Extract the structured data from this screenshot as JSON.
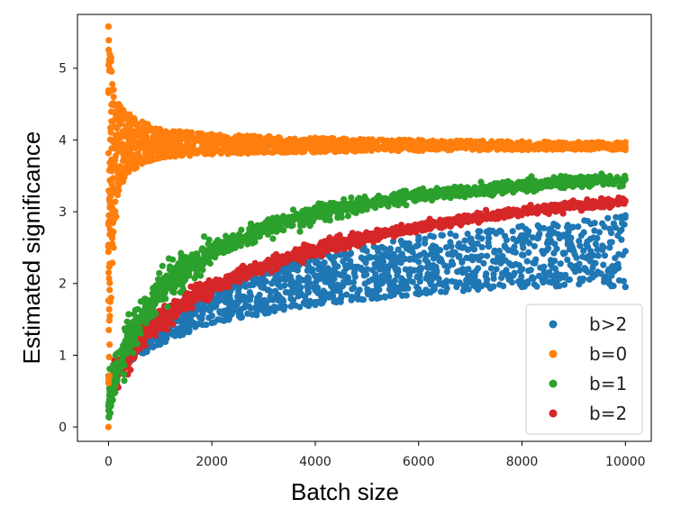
{
  "chart_data": {
    "type": "scatter",
    "xlabel": "Batch size",
    "ylabel": "Estimated significance",
    "xlim": [
      -600,
      10500
    ],
    "ylim": [
      -0.2,
      5.75
    ],
    "xticks": [
      0,
      2000,
      4000,
      6000,
      8000,
      10000
    ],
    "yticks": [
      0,
      1,
      2,
      3,
      4,
      5
    ],
    "grid": false,
    "legend": "lower-right",
    "series": [
      {
        "name": "b>2",
        "color": "#1f77b4",
        "description": "dense band rising from ~1.2 at x≈300 to between ~1.9 and ~2.95 at x=10000",
        "points": [
          [
            300,
            0.95
          ],
          [
            500,
            1.1
          ],
          [
            1000,
            1.35
          ],
          [
            1500,
            1.55
          ],
          [
            2000,
            1.7
          ],
          [
            3000,
            1.95
          ],
          [
            4000,
            2.1
          ],
          [
            5000,
            2.2
          ],
          [
            6000,
            2.3
          ],
          [
            7000,
            2.35
          ],
          [
            8000,
            2.4
          ],
          [
            9000,
            2.45
          ],
          [
            10000,
            2.45
          ]
        ],
        "band_low": [
          [
            300,
            0.85
          ],
          [
            1000,
            1.15
          ],
          [
            2000,
            1.45
          ],
          [
            4000,
            1.7
          ],
          [
            6000,
            1.85
          ],
          [
            8000,
            1.95
          ],
          [
            10000,
            1.95
          ]
        ],
        "band_high": [
          [
            300,
            1.15
          ],
          [
            1000,
            1.6
          ],
          [
            2000,
            2.0
          ],
          [
            4000,
            2.4
          ],
          [
            6000,
            2.65
          ],
          [
            8000,
            2.8
          ],
          [
            10000,
            2.95
          ]
        ]
      },
      {
        "name": "b=0",
        "color": "#ff7f0e",
        "description": "scatter converging to ~3.9, very widely spread near x=0 (0 to 5.6)",
        "points": [
          [
            0,
            5.58
          ],
          [
            50,
            5.1
          ],
          [
            100,
            4.6
          ],
          [
            200,
            4.3
          ],
          [
            500,
            4.05
          ],
          [
            1000,
            3.98
          ],
          [
            2000,
            3.95
          ],
          [
            4000,
            3.93
          ],
          [
            6000,
            3.92
          ],
          [
            8000,
            3.92
          ],
          [
            10000,
            3.91
          ]
        ],
        "band_low": [
          [
            0,
            0.0
          ],
          [
            50,
            1.8
          ],
          [
            100,
            2.5
          ],
          [
            200,
            3.3
          ],
          [
            500,
            3.6
          ],
          [
            1000,
            3.75
          ],
          [
            2000,
            3.8
          ],
          [
            4000,
            3.83
          ],
          [
            6000,
            3.85
          ],
          [
            8000,
            3.86
          ],
          [
            10000,
            3.86
          ]
        ],
        "band_high": [
          [
            0,
            5.58
          ],
          [
            50,
            5.15
          ],
          [
            100,
            4.7
          ],
          [
            200,
            4.5
          ],
          [
            500,
            4.3
          ],
          [
            1000,
            4.15
          ],
          [
            2000,
            4.08
          ],
          [
            4000,
            4.03
          ],
          [
            6000,
            4.0
          ],
          [
            8000,
            3.98
          ],
          [
            10000,
            3.97
          ]
        ]
      },
      {
        "name": "b=1",
        "color": "#2ca02c",
        "description": "concave rising curve from ~0.3 at x≈0 to ~3.45 at x=10000",
        "points": [
          [
            0,
            0.3
          ],
          [
            100,
            0.6
          ],
          [
            200,
            0.9
          ],
          [
            300,
            1.1
          ],
          [
            500,
            1.4
          ],
          [
            1000,
            1.9
          ],
          [
            1500,
            2.2
          ],
          [
            2000,
            2.45
          ],
          [
            3000,
            2.75
          ],
          [
            4000,
            2.98
          ],
          [
            5000,
            3.12
          ],
          [
            6000,
            3.22
          ],
          [
            7000,
            3.3
          ],
          [
            8000,
            3.36
          ],
          [
            9000,
            3.42
          ],
          [
            10000,
            3.45
          ]
        ],
        "spread": [
          0.3,
          0.22,
          0.12,
          0.08
        ]
      },
      {
        "name": "b=2",
        "color": "#d62728",
        "description": "concave rising curve from ~0.65 at x≈100 to ~3.15 at x=10000",
        "points": [
          [
            100,
            0.65
          ],
          [
            200,
            0.8
          ],
          [
            300,
            0.95
          ],
          [
            500,
            1.15
          ],
          [
            1000,
            1.5
          ],
          [
            1500,
            1.75
          ],
          [
            2000,
            1.95
          ],
          [
            3000,
            2.25
          ],
          [
            4000,
            2.48
          ],
          [
            5000,
            2.65
          ],
          [
            6000,
            2.78
          ],
          [
            7000,
            2.9
          ],
          [
            8000,
            3.0
          ],
          [
            9000,
            3.08
          ],
          [
            10000,
            3.15
          ]
        ],
        "spread": [
          0.22,
          0.14,
          0.09,
          0.06
        ]
      }
    ]
  }
}
